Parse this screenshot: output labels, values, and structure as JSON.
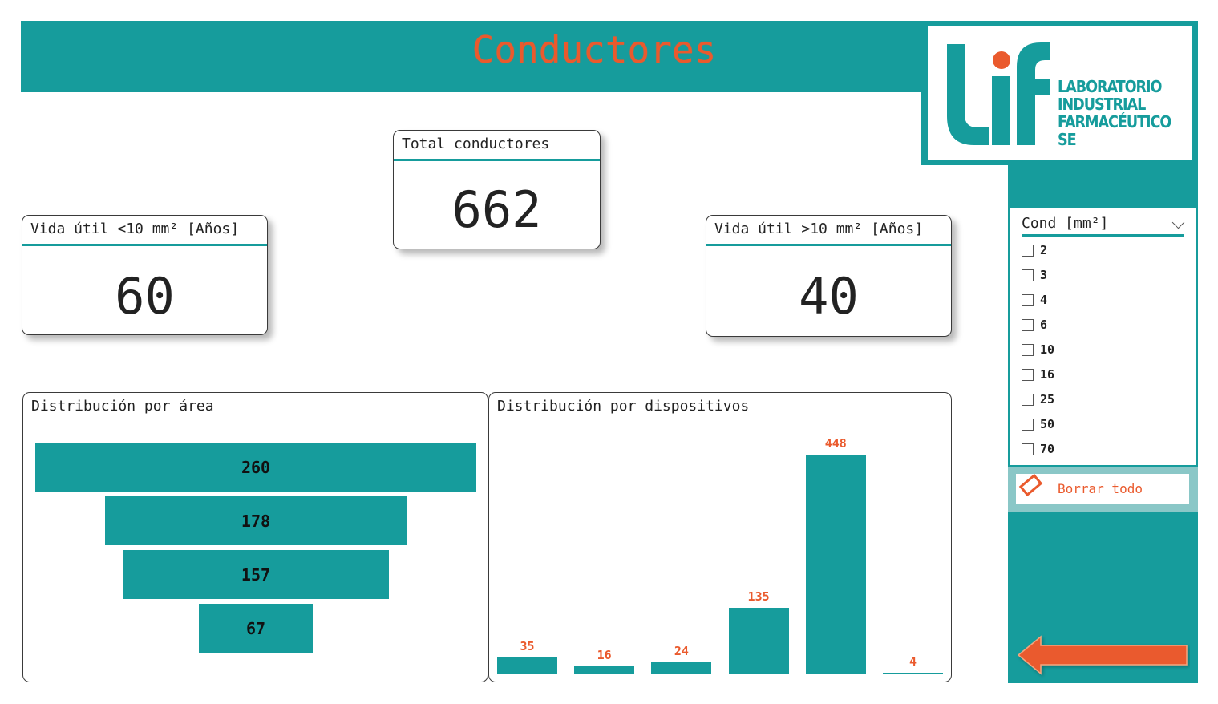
{
  "header": {
    "title": "Conductores"
  },
  "logo": {
    "mark": "LiF",
    "lines": [
      "LABORATORIO",
      "INDUSTRIAL",
      "FARMACÉUTICO",
      "SE"
    ]
  },
  "kpis": {
    "total": {
      "title": "Total conductores",
      "value": "662"
    },
    "vida_small": {
      "title": "Vida útil <10 mm² [Años]",
      "value": "60"
    },
    "vida_large": {
      "title": "Vida útil >10 mm² [Años]",
      "value": "40"
    }
  },
  "area_chart": {
    "title": "Distribución por área"
  },
  "devices_chart": {
    "title": "Distribución por dispositivos"
  },
  "chart_data": [
    {
      "type": "bar",
      "orientation": "funnel",
      "values": [
        260,
        178,
        157,
        67
      ]
    },
    {
      "type": "bar",
      "values": [
        35,
        16,
        24,
        135,
        448,
        4
      ]
    }
  ],
  "slicer": {
    "title": "Cond [mm²]",
    "options": [
      "2",
      "3",
      "4",
      "6",
      "10",
      "16",
      "25",
      "50",
      "70"
    ]
  },
  "clear_button": {
    "label": "Borrar todo"
  },
  "colors": {
    "accent": "#169c9c",
    "highlight": "#ea5a2d"
  },
  "icons": {
    "slicer_toggle": "chevron-down-icon",
    "clear": "eraser-icon",
    "back": "back-arrow-icon"
  }
}
